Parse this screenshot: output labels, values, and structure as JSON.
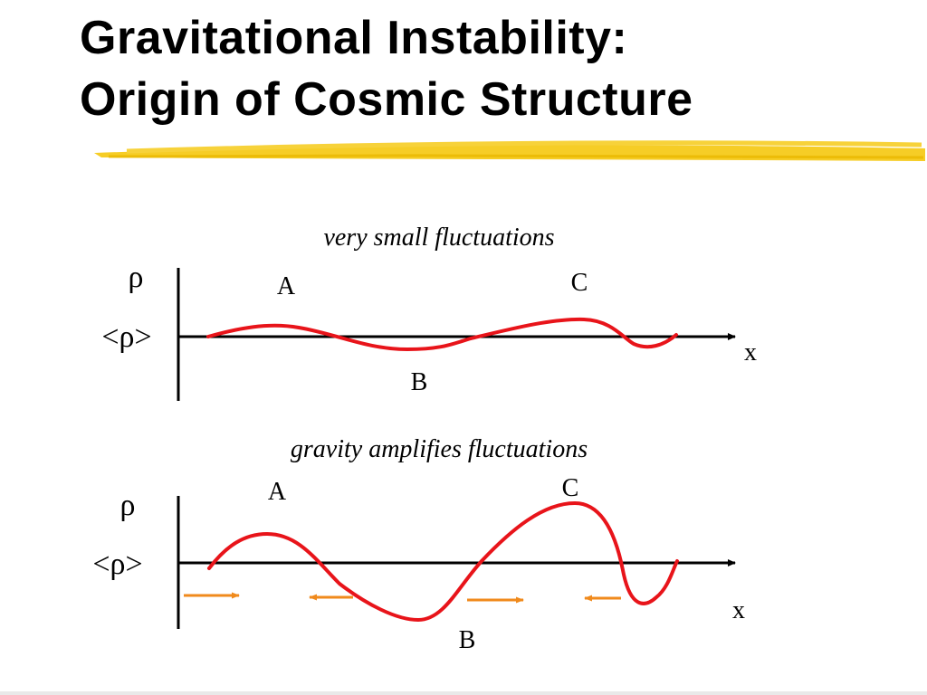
{
  "title": {
    "line1": "Gravitational Instability:",
    "line2": "Origin of Cosmic Structure"
  },
  "colors": {
    "highlight": "#f5c400",
    "curve": "#e8141a",
    "arrow": "#f08a1c",
    "axis": "#000000"
  },
  "panels": [
    {
      "caption": "very small fluctuations",
      "y_label": "ρ",
      "mean_label": "<ρ>",
      "x_label": "x",
      "points": {
        "a": "A",
        "b": "B",
        "c": "C"
      }
    },
    {
      "caption": "gravity amplifies fluctuations",
      "y_label": "ρ",
      "mean_label": "<ρ>",
      "x_label": "x",
      "points": {
        "a": "A",
        "b": "B",
        "c": "C"
      }
    }
  ]
}
